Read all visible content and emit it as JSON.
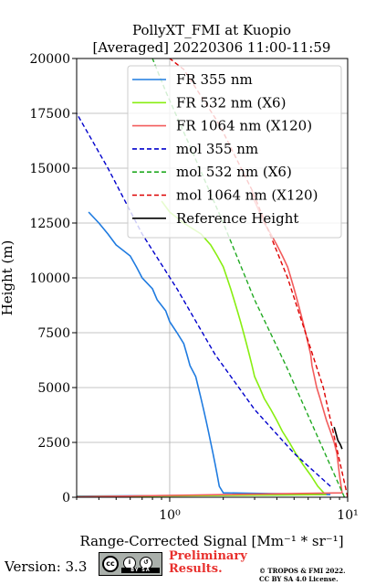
{
  "chart_data": {
    "type": "line",
    "title": "PollyXT_FMI at Kuopio",
    "subtitle": "[Averaged] 20220306 11:00-11:59",
    "xlabel": "Range-Corrected Signal [Mm⁻¹ * sr⁻¹]",
    "ylabel": "Height (m)",
    "xscale": "log",
    "xlim": [
      0.3,
      10
    ],
    "ylim": [
      0,
      20000
    ],
    "x_ticks": [
      1,
      10
    ],
    "x_tick_labels": [
      "10⁰",
      "10¹"
    ],
    "y_ticks": [
      0,
      2500,
      5000,
      7500,
      10000,
      12500,
      15000,
      17500,
      20000
    ],
    "grid": true,
    "legend_position": "top-right",
    "series": [
      {
        "name": "FR 355 nm",
        "color": "#1f7be0",
        "style": "solid",
        "points": [
          [
            0.3,
            50
          ],
          [
            8.0,
            120
          ],
          [
            2.0,
            200
          ],
          [
            1.9,
            500
          ],
          [
            1.85,
            1000
          ],
          [
            1.8,
            1500
          ],
          [
            1.75,
            2000
          ],
          [
            1.7,
            2500
          ],
          [
            1.65,
            3000
          ],
          [
            1.6,
            3500
          ],
          [
            1.55,
            4000
          ],
          [
            1.5,
            4500
          ],
          [
            1.45,
            5000
          ],
          [
            1.4,
            5500
          ],
          [
            1.3,
            6000
          ],
          [
            1.25,
            6500
          ],
          [
            1.2,
            7000
          ],
          [
            1.1,
            7500
          ],
          [
            1.0,
            8000
          ],
          [
            0.95,
            8500
          ],
          [
            0.85,
            9000
          ],
          [
            0.8,
            9500
          ],
          [
            0.7,
            10000
          ],
          [
            0.65,
            10500
          ],
          [
            0.6,
            11000
          ],
          [
            0.5,
            11500
          ],
          [
            0.45,
            12000
          ],
          [
            0.4,
            12500
          ],
          [
            0.35,
            13000
          ]
        ]
      },
      {
        "name": "FR 532 nm (X6)",
        "color": "#88ee11",
        "style": "solid",
        "points": [
          [
            0.3,
            30
          ],
          [
            7.5,
            120
          ],
          [
            6.8,
            500
          ],
          [
            6.2,
            1000
          ],
          [
            5.6,
            1500
          ],
          [
            5.1,
            2000
          ],
          [
            4.7,
            2500
          ],
          [
            4.3,
            3000
          ],
          [
            4.0,
            3500
          ],
          [
            3.7,
            4000
          ],
          [
            3.4,
            4500
          ],
          [
            3.2,
            5000
          ],
          [
            3.0,
            5500
          ],
          [
            2.9,
            6000
          ],
          [
            2.8,
            6500
          ],
          [
            2.7,
            7000
          ],
          [
            2.6,
            7500
          ],
          [
            2.5,
            8000
          ],
          [
            2.4,
            8500
          ],
          [
            2.3,
            9000
          ],
          [
            2.2,
            9500
          ],
          [
            2.1,
            10000
          ],
          [
            2.0,
            10500
          ],
          [
            1.85,
            11000
          ],
          [
            1.7,
            11500
          ],
          [
            1.5,
            12000
          ],
          [
            1.2,
            12500
          ],
          [
            1.0,
            13000
          ],
          [
            0.9,
            13500
          ]
        ]
      },
      {
        "name": "FR 1064 nm (X120)",
        "color": "#f25c5c",
        "style": "solid",
        "points": [
          [
            0.3,
            20
          ],
          [
            9.3,
            200
          ],
          [
            9.0,
            1000
          ],
          [
            8.7,
            2000
          ],
          [
            8.4,
            2500
          ],
          [
            8.0,
            3000
          ],
          [
            7.6,
            3500
          ],
          [
            7.3,
            4000
          ],
          [
            7.0,
            4500
          ],
          [
            6.7,
            5000
          ],
          [
            6.5,
            5500
          ],
          [
            6.3,
            6000
          ],
          [
            6.2,
            6500
          ],
          [
            6.0,
            7000
          ],
          [
            5.8,
            7500
          ],
          [
            5.6,
            8000
          ],
          [
            5.4,
            8500
          ],
          [
            5.2,
            9000
          ],
          [
            5.0,
            9500
          ],
          [
            4.8,
            10000
          ],
          [
            4.6,
            10500
          ],
          [
            4.3,
            11000
          ],
          [
            4.0,
            11500
          ],
          [
            3.7,
            12000
          ],
          [
            3.4,
            12500
          ],
          [
            3.2,
            13000
          ],
          [
            3.0,
            13500
          ],
          [
            2.9,
            14000
          ]
        ]
      },
      {
        "name": "mol 355 nm",
        "color": "#0000cc",
        "style": "dashed",
        "points": [
          [
            8.0,
            500
          ],
          [
            5.0,
            2000
          ],
          [
            3.0,
            4000
          ],
          [
            1.8,
            6500
          ],
          [
            1.1,
            9500
          ],
          [
            0.7,
            12000
          ],
          [
            0.45,
            15000
          ],
          [
            0.3,
            17500
          ]
        ]
      },
      {
        "name": "mol 532 nm (X6)",
        "color": "#22aa22",
        "style": "dashed",
        "points": [
          [
            9.6,
            0
          ],
          [
            7.0,
            2500
          ],
          [
            4.5,
            6000
          ],
          [
            3.0,
            9000
          ],
          [
            2.0,
            12500
          ],
          [
            1.3,
            16000
          ],
          [
            0.95,
            18500
          ],
          [
            0.8,
            20000
          ]
        ]
      },
      {
        "name": "mol 1064 nm (X120)",
        "color": "#dd0000",
        "style": "dashed",
        "points": [
          [
            10.0,
            0
          ],
          [
            7.3,
            5000
          ],
          [
            4.6,
            10000
          ],
          [
            2.9,
            14000
          ],
          [
            1.9,
            17000
          ],
          [
            1.2,
            19500
          ],
          [
            1.0,
            20000
          ]
        ]
      },
      {
        "name": "Reference Height",
        "color": "#000000",
        "style": "solid",
        "points": [
          [
            8.4,
            3200
          ],
          [
            8.6,
            2900
          ],
          [
            8.8,
            2600
          ],
          [
            9.1,
            2400
          ],
          [
            9.3,
            2200
          ]
        ]
      }
    ]
  },
  "footer": {
    "version": "Version: 3.3",
    "cc_label": "cc",
    "cc_by": "BY",
    "cc_sa": "SA",
    "preliminary_line1": "Preliminary",
    "preliminary_line2": "Results.",
    "copyright_line1": "© TROPOS & FMI 2022.",
    "copyright_line2": "CC BY SA 4.0 License."
  }
}
